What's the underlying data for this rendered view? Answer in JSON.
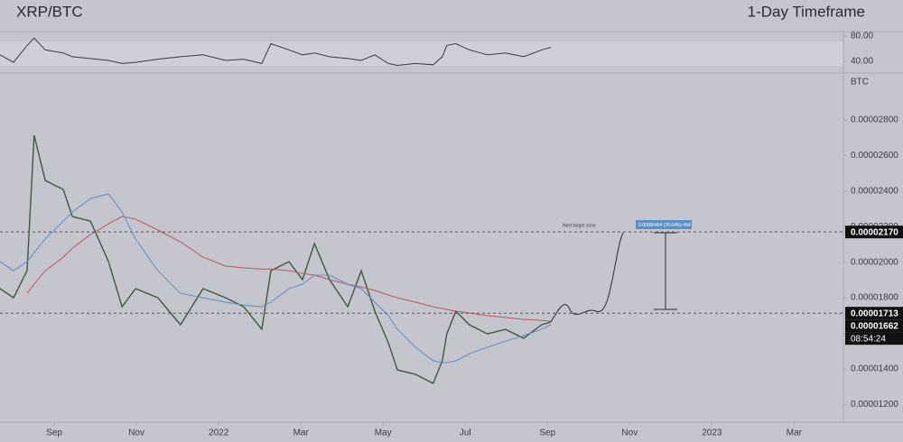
{
  "chart_data": {
    "type": "line",
    "title": "XRP/BTC",
    "subtitle": "1-Day Timeframe",
    "y_label": "BTC",
    "x": [
      -0.32,
      0.01,
      0.34,
      0.51,
      0.78,
      1.22,
      1.44,
      1.88,
      2.32,
      2.65,
      2.98,
      3.52,
      4.07,
      4.62,
      5.17,
      5.61,
      6.05,
      6.27,
      6.71,
      7.04,
      7.33,
      7.7,
      8.14,
      8.47,
      8.8,
      9.13,
      9.35,
      9.79,
      10.22,
      10.44,
      10.55,
      10.77,
      11.1,
      11.54,
      11.98,
      12.42,
      12.86,
      13.08
    ],
    "xlim": [
      -0.32,
      20.2
    ],
    "xticks": [
      {
        "value": 1,
        "label": "Sep"
      },
      {
        "value": 3,
        "label": "Nov"
      },
      {
        "value": 5,
        "label": "2022"
      },
      {
        "value": 7,
        "label": "Mar"
      },
      {
        "value": 9,
        "label": "May"
      },
      {
        "value": 11,
        "label": "Jul"
      },
      {
        "value": 13,
        "label": "Sep"
      },
      {
        "value": 15,
        "label": "Nov"
      },
      {
        "value": 17,
        "label": "2023"
      },
      {
        "value": 19,
        "label": "Mar"
      }
    ],
    "ylim": [
      1.1e-05,
      3.059e-05
    ],
    "yticks": [
      {
        "value": 1.2e-05,
        "label": "0.00001200"
      },
      {
        "value": 1.4e-05,
        "label": "0.00001400"
      },
      {
        "value": 1.6e-05,
        "label": "0.00001600"
      },
      {
        "value": 1.8e-05,
        "label": "0.00001800"
      },
      {
        "value": 2e-05,
        "label": "0.00002000"
      },
      {
        "value": 2.2e-05,
        "label": "0.00002200"
      },
      {
        "value": 2.4e-05,
        "label": "0.00002400"
      },
      {
        "value": 2.6e-05,
        "label": "0.00002600"
      },
      {
        "value": 2.8e-05,
        "label": "0.00002800"
      }
    ],
    "grid": false,
    "series": [
      {
        "color": "#3d5a3f",
        "values": [
          1.851e-05,
          1.8e-05,
          1.952e-05,
          2.714e-05,
          2.46e-05,
          2.409e-05,
          2.257e-05,
          2.231e-05,
          2.003e-05,
          1.749e-05,
          1.851e-05,
          1.8e-05,
          1.648e-05,
          1.851e-05,
          1.8e-05,
          1.749e-05,
          1.622e-05,
          1.952e-05,
          2.003e-05,
          1.902e-05,
          2.105e-05,
          1.902e-05,
          1.749e-05,
          1.952e-05,
          1.724e-05,
          1.546e-05,
          1.394e-05,
          1.369e-05,
          1.318e-05,
          1.445e-05,
          1.597e-05,
          1.724e-05,
          1.648e-05,
          1.597e-05,
          1.622e-05,
          1.572e-05,
          1.648e-05,
          1.663e-05
        ]
      },
      {
        "color": "#b85a60",
        "values": [
          null,
          null,
          1.825e-05,
          1.876e-05,
          1.952e-05,
          2.028e-05,
          2.079e-05,
          2.155e-05,
          2.216e-05,
          2.257e-05,
          2.242e-05,
          2.181e-05,
          2.115e-05,
          2.028e-05,
          1.978e-05,
          1.968e-05,
          1.962e-05,
          1.962e-05,
          1.952e-05,
          1.937e-05,
          1.927e-05,
          1.902e-05,
          1.876e-05,
          1.861e-05,
          1.841e-05,
          1.815e-05,
          1.8e-05,
          1.775e-05,
          1.749e-05,
          1.739e-05,
          1.734e-05,
          1.724e-05,
          1.714e-05,
          1.699e-05,
          1.689e-05,
          1.678e-05,
          1.673e-05,
          1.668e-05
        ]
      },
      {
        "color": "#5b8fc6",
        "values": [
          2.003e-05,
          1.952e-05,
          2.003e-05,
          2.054e-05,
          2.13e-05,
          2.231e-05,
          2.282e-05,
          2.358e-05,
          2.384e-05,
          2.282e-05,
          2.13e-05,
          1.952e-05,
          1.825e-05,
          1.8e-05,
          1.775e-05,
          1.759e-05,
          1.749e-05,
          1.775e-05,
          1.851e-05,
          1.876e-05,
          1.927e-05,
          1.927e-05,
          1.876e-05,
          1.851e-05,
          1.775e-05,
          1.699e-05,
          1.622e-05,
          1.521e-05,
          1.445e-05,
          1.435e-05,
          1.435e-05,
          1.445e-05,
          1.485e-05,
          1.521e-05,
          1.556e-05,
          1.587e-05,
          1.622e-05,
          1.648e-05
        ]
      }
    ],
    "rsi": {
      "color": "#3a3a44",
      "ylim": [
        20.7,
        87.4
      ],
      "yticks": [
        {
          "value": 40,
          "label": "40.00"
        },
        {
          "value": 80,
          "label": "80.00"
        }
      ],
      "values": [
        50,
        38,
        65,
        77,
        58,
        53,
        47,
        44,
        41,
        36,
        38,
        43,
        47,
        50,
        41,
        43,
        36,
        68,
        58,
        50,
        53,
        47,
        44,
        41,
        50,
        36,
        33,
        36,
        34,
        47,
        65,
        68,
        58,
        50,
        53,
        47,
        58,
        62
      ]
    },
    "price_tags": [
      {
        "value": 2.17e-05,
        "label": "0.00002170",
        "line": true
      },
      {
        "value": 1.713e-05,
        "label": "0.00001713",
        "line": true
      },
      {
        "value": 1.662e-05,
        "label": "0.00001662",
        "line": false
      }
    ],
    "countdown": "08:54:24",
    "annotation": "Next target zone.",
    "measure_label": "0.00000454 (25.04%) 454"
  }
}
